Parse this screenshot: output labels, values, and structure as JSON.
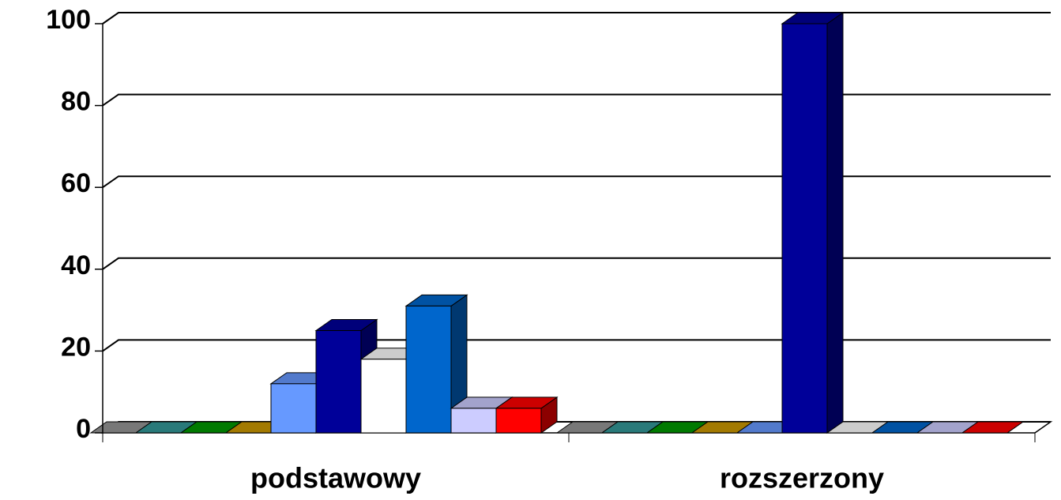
{
  "chart_data": {
    "type": "bar3d",
    "categories": [
      "podstawowy",
      "rozszerzony"
    ],
    "series": [
      {
        "color": "#969696",
        "values": [
          0,
          0
        ]
      },
      {
        "color": "#339999",
        "values": [
          0,
          0
        ]
      },
      {
        "color": "#009900",
        "values": [
          0,
          0
        ]
      },
      {
        "color": "#cc9900",
        "values": [
          0,
          0
        ]
      },
      {
        "color": "#6699ff",
        "values": [
          12,
          0
        ]
      },
      {
        "color": "#000099",
        "values": [
          25,
          100
        ]
      },
      {
        "color": "#ffffff",
        "values": [
          18,
          0
        ]
      },
      {
        "color": "#0066cc",
        "values": [
          31,
          0
        ]
      },
      {
        "color": "#ccccff",
        "values": [
          6,
          0
        ]
      },
      {
        "color": "#ff0000",
        "values": [
          6,
          0
        ]
      }
    ],
    "ylim": [
      0,
      100
    ],
    "yticks": [
      0,
      20,
      40,
      60,
      80,
      100
    ],
    "grid": true
  }
}
